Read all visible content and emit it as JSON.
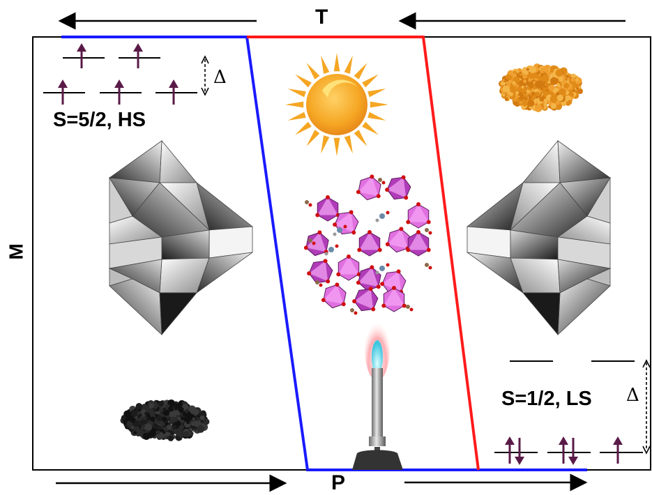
{
  "axes": {
    "top": "T",
    "bottom": "P",
    "left": "M"
  },
  "high_spin": {
    "state_label": "S=5/2, HS",
    "gap_symbol": "Δ",
    "electron_count": 5
  },
  "low_spin": {
    "state_label": "S=1/2, LS",
    "gap_symbol": "Δ",
    "electron_count": 5
  },
  "colors": {
    "hs_boundary": "#1a1aff",
    "ls_boundary": "#ff1a1a",
    "electron_arrow": "#5a1a48",
    "polyhedra": "#cc44cc",
    "sun": "#f5a623",
    "powder_hs": "#1e1e1e",
    "powder_ls": "#e08a18"
  },
  "icons": [
    "sun-icon",
    "bunsen-burner-icon",
    "diamond-anvil-icon",
    "crystal-structure-icon",
    "powder-sample-icon"
  ]
}
